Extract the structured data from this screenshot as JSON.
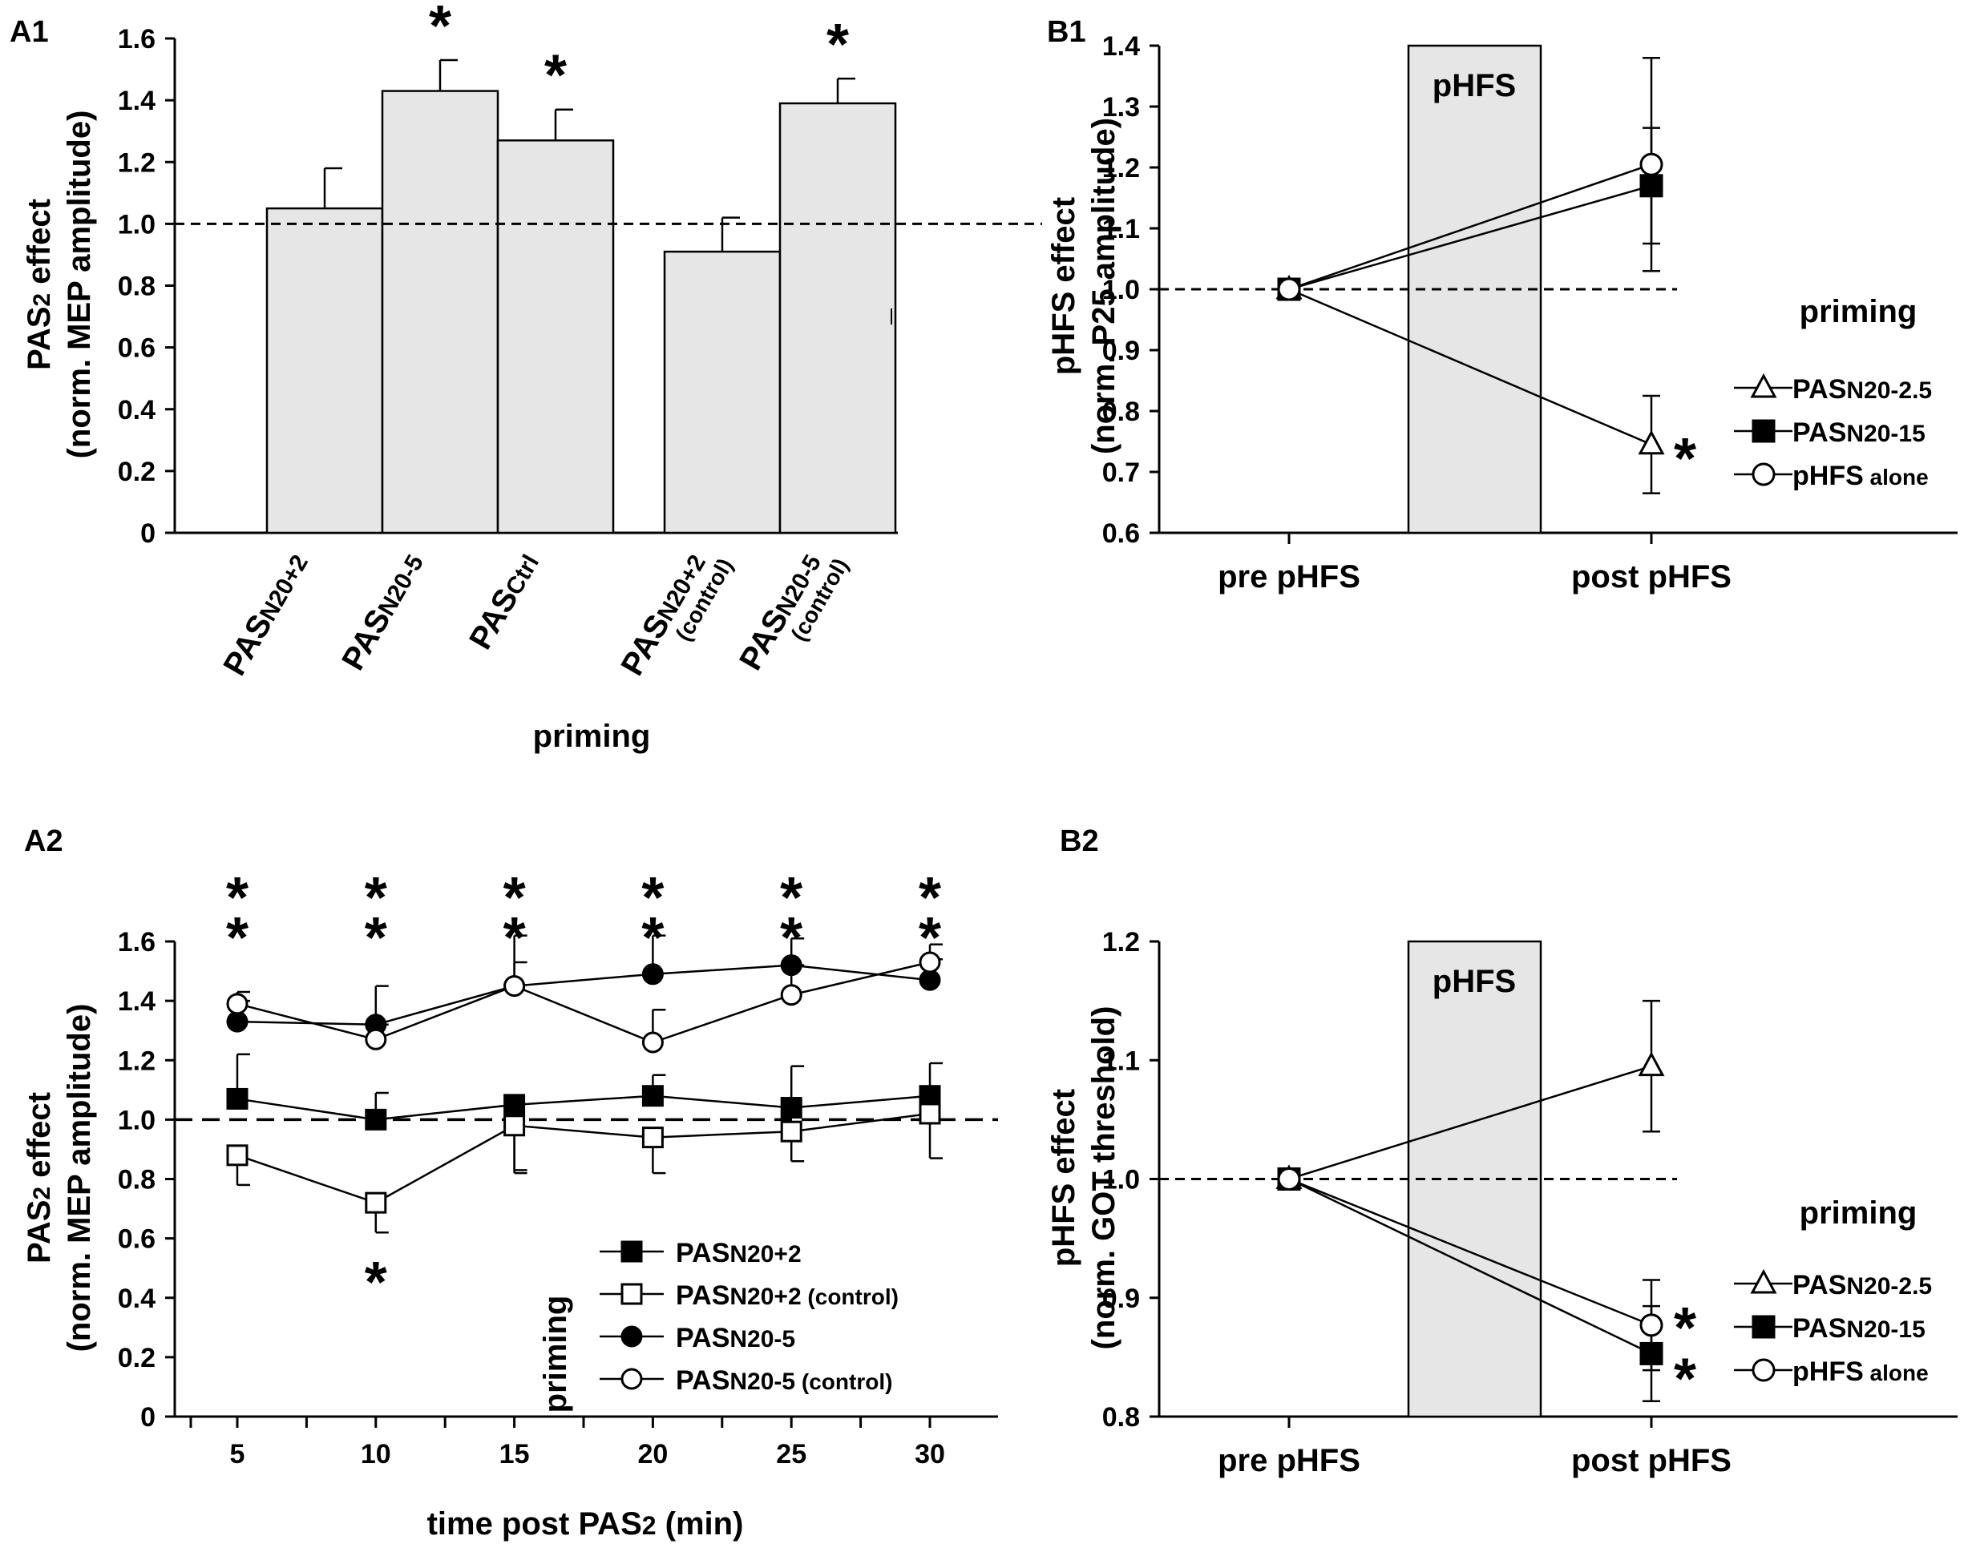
{
  "colors": {
    "bar_fill": "#e6e6e6",
    "ink": "#000000",
    "shade": "#e6e6e6"
  },
  "panels": {
    "A1": {
      "label": "A1"
    },
    "A2": {
      "label": "A2"
    },
    "B1": {
      "label": "B1"
    },
    "B2": {
      "label": "B2"
    }
  },
  "chart_data": [
    {
      "id": "A1",
      "type": "bar",
      "xlabel": "priming",
      "ylabel": [
        "PAS2 effect",
        "(norm. MEP amplitude)"
      ],
      "ylim": [
        0,
        1.6
      ],
      "yticks": [
        "0",
        "0.2",
        "0.4",
        "0.6",
        "0.8",
        "1.0",
        "1.2",
        "1.4",
        "1.6"
      ],
      "reference_line": 1.0,
      "categories": [
        {
          "main": "PAS",
          "sub": "N20+2",
          "extra": ""
        },
        {
          "main": "PAS",
          "sub": "N20-5",
          "extra": ""
        },
        {
          "main": "PAS",
          "sub": "Ctrl",
          "extra": ""
        },
        {
          "main": "PAS",
          "sub": "N20+2",
          "extra": "(control)"
        },
        {
          "main": "PAS",
          "sub": "N20-5",
          "extra": "(control)"
        }
      ],
      "values": [
        1.05,
        1.43,
        1.27,
        0.91,
        1.39
      ],
      "errors": [
        0.13,
        0.1,
        0.1,
        0.11,
        0.08
      ],
      "significance": [
        "",
        "*",
        "*",
        "",
        "*"
      ]
    },
    {
      "id": "A2",
      "type": "line",
      "xlabel": "time post PAS2 (min)",
      "ylabel": [
        "PAS2 effect",
        "(norm. MEP amplitude)"
      ],
      "x": [
        5,
        10,
        15,
        20,
        25,
        30
      ],
      "xticks": [
        "5",
        "10",
        "15",
        "20",
        "25",
        "30"
      ],
      "ylim": [
        0,
        1.6
      ],
      "yticks": [
        "0",
        "0.2",
        "0.4",
        "0.6",
        "0.8",
        "1.0",
        "1.2",
        "1.4",
        "1.6"
      ],
      "reference_line": 1.0,
      "legend_title": "priming",
      "series": [
        {
          "name": "PASN20+2",
          "main": "PAS",
          "sub": "N20+2",
          "extra": "",
          "marker": "square",
          "filled": true,
          "values": [
            1.07,
            1.0,
            1.05,
            1.08,
            1.04,
            1.08
          ],
          "errors": [
            0.15,
            0.09,
            0.23,
            0.07,
            0.14,
            0.11
          ]
        },
        {
          "name": "PASN20+2 (control)",
          "main": "PAS",
          "sub": "N20+2",
          "extra": " (control)",
          "marker": "square",
          "filled": false,
          "values": [
            0.88,
            0.72,
            0.98,
            0.94,
            0.96,
            1.02
          ],
          "errors": [
            0.1,
            0.1,
            0.15,
            0.12,
            0.1,
            0.15
          ]
        },
        {
          "name": "PASN20-5",
          "main": "PAS",
          "sub": "N20-5",
          "extra": "",
          "marker": "circle",
          "filled": true,
          "values": [
            1.33,
            1.32,
            1.45,
            1.49,
            1.52,
            1.47
          ],
          "errors": [
            0.07,
            0.13,
            0.17,
            0.13,
            0.09,
            0.07
          ]
        },
        {
          "name": "PASN20-5 (control)",
          "main": "PAS",
          "sub": "N20-5",
          "extra": " (control)",
          "marker": "circle",
          "filled": false,
          "values": [
            1.39,
            1.27,
            1.45,
            1.26,
            1.42,
            1.53
          ],
          "errors": [
            0.04,
            0.05,
            0.08,
            0.11,
            0.1,
            0.06
          ]
        }
      ],
      "significance_above": [
        "**",
        "**",
        "**",
        "**",
        "**",
        "**"
      ],
      "significance_below": [
        "",
        "*",
        "",
        "",
        "",
        ""
      ]
    },
    {
      "id": "B1",
      "type": "line",
      "xlabel": "",
      "ylabel": [
        "pHFS effect",
        "(norm. P25 amplitude)"
      ],
      "categories": [
        "pre pHFS",
        "post pHFS"
      ],
      "ylim": [
        0.6,
        1.4
      ],
      "yticks": [
        "0.6",
        "0.7",
        "0.8",
        "0.9",
        "1.0",
        "1.1",
        "1.2",
        "1.3",
        "1.4"
      ],
      "reference_line": 1.0,
      "shaded_label": "pHFS",
      "legend_title": "priming",
      "series": [
        {
          "name": "PASN20-2.5",
          "main": "PAS",
          "sub": "N20-2.5",
          "marker": "triangle",
          "filled": false,
          "values": [
            1.0,
            0.745
          ],
          "errors": [
            0,
            0.08
          ]
        },
        {
          "name": "PASN20-15",
          "main": "PAS",
          "sub": "N20-15",
          "marker": "square",
          "filled": true,
          "values": [
            1.0,
            1.17
          ],
          "errors": [
            0,
            0.095
          ]
        },
        {
          "name": "pHFS alone",
          "main": "pHFS",
          "sub": " alone",
          "marker": "circle",
          "filled": false,
          "values": [
            1.0,
            1.205
          ],
          "errors": [
            0,
            0.175
          ]
        }
      ],
      "significance": [
        {
          "series": "PASN20-2.5",
          "mark": "*"
        }
      ]
    },
    {
      "id": "B2",
      "type": "line",
      "xlabel": "",
      "ylabel": [
        "pHFS effect",
        "(norm. GOT threshold)"
      ],
      "categories": [
        "pre pHFS",
        "post pHFS"
      ],
      "ylim": [
        0.8,
        1.2
      ],
      "yticks": [
        "0.8",
        "0.9",
        "1.0",
        "1.1",
        "1.2"
      ],
      "reference_line": 1.0,
      "shaded_label": "pHFS",
      "legend_title": "priming",
      "series": [
        {
          "name": "PASN20-2.5",
          "main": "PAS",
          "sub": "N20-2.5",
          "marker": "triangle",
          "filled": false,
          "values": [
            1.0,
            1.095
          ],
          "errors": [
            0,
            0.055
          ]
        },
        {
          "name": "PASN20-15",
          "main": "PAS",
          "sub": "N20-15",
          "marker": "square",
          "filled": true,
          "values": [
            1.0,
            0.853
          ],
          "errors": [
            0,
            0.04
          ]
        },
        {
          "name": "pHFS alone",
          "main": "pHFS",
          "sub": " alone",
          "marker": "circle",
          "filled": false,
          "values": [
            1.0,
            0.877
          ],
          "errors": [
            0,
            0.038
          ]
        }
      ],
      "significance": [
        {
          "series": "pHFS alone",
          "mark": "*"
        },
        {
          "series": "PASN20-15",
          "mark": "*"
        }
      ]
    }
  ]
}
